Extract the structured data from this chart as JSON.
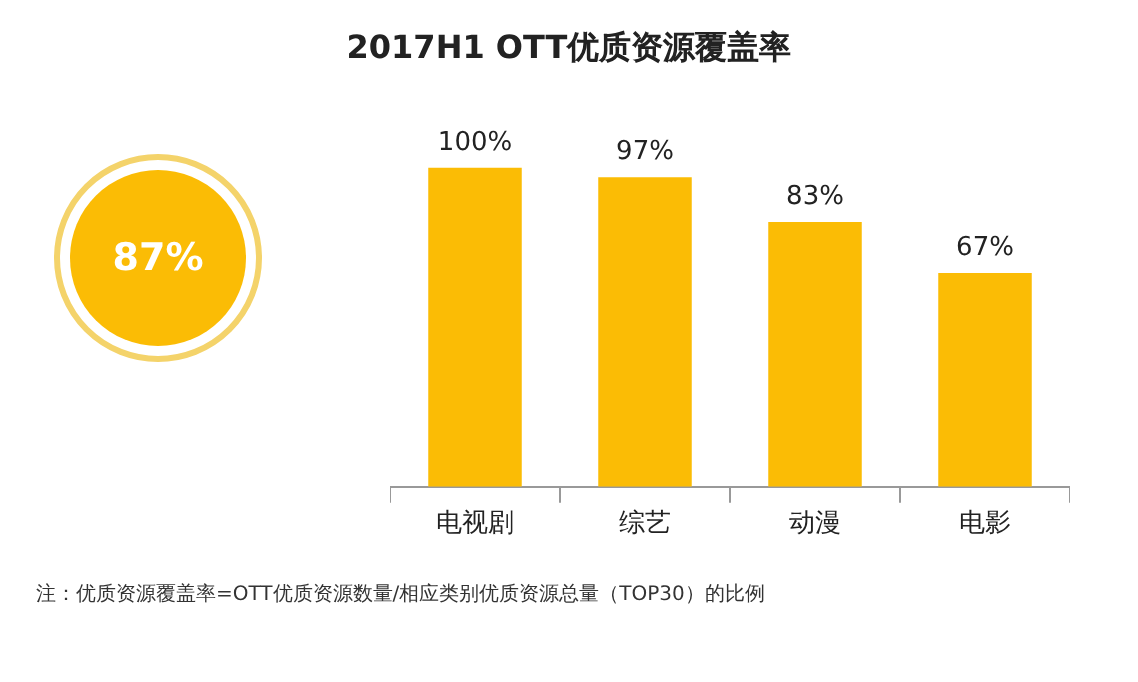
{
  "chart_data": {
    "type": "bar",
    "title": "2017H1 OTT优质资源覆盖率",
    "categories": [
      "电视剧",
      "综艺",
      "动漫",
      "电影"
    ],
    "values": [
      100,
      97,
      83,
      67
    ],
    "value_labels": [
      "100%",
      "97%",
      "83%",
      "67%"
    ],
    "color": "#fbbc05",
    "tick_labels": "x",
    "grid": false,
    "legend": false,
    "annotations": [
      "87%",
      "注：优质资源覆盖率=OTT优质资源数量/相应类别优质资源总量（TOP30）的比例"
    ]
  }
}
